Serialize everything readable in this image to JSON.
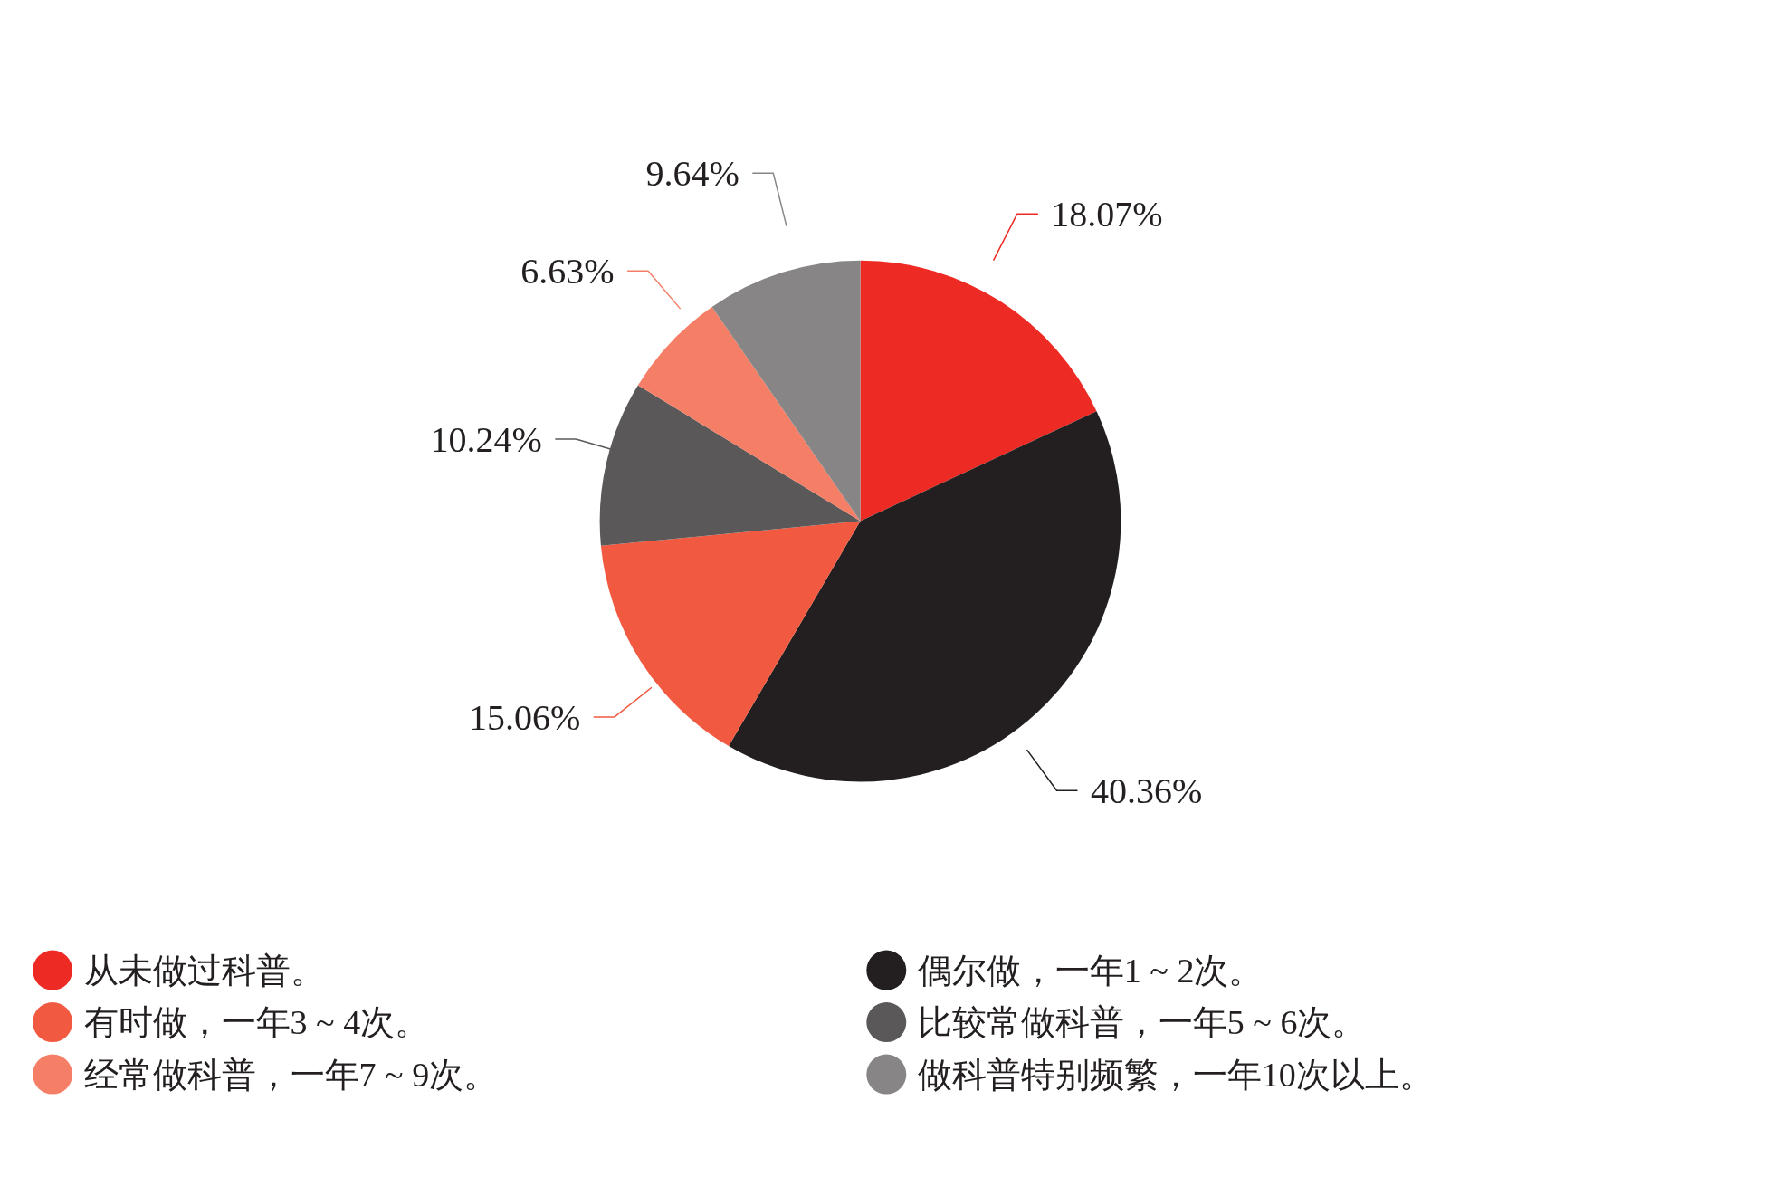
{
  "chart_data": {
    "type": "pie",
    "categories": [
      "从未做过科普。",
      "偶尔做，一年1 ~ 2次。",
      "有时做，一年3 ~ 4次。",
      "比较常做科普，一年5 ~ 6次。",
      "经常做科普，一年7 ~ 9次。",
      "做科普特别频繁，一年10次以上。"
    ],
    "values": [
      18.07,
      40.36,
      15.06,
      10.24,
      6.63,
      9.64
    ],
    "value_labels": [
      "18.07%",
      "40.36%",
      "15.06%",
      "10.24%",
      "6.63%",
      "9.64%"
    ],
    "colors": [
      "#ee2a24",
      "#231f20",
      "#f15a40",
      "#5b5859",
      "#f47f66",
      "#878586"
    ],
    "legend": "bottom"
  }
}
